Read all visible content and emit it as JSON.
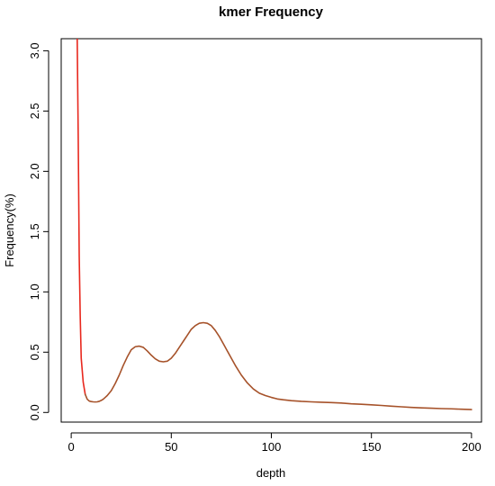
{
  "chart_data": {
    "type": "line",
    "title": "kmer Frequency",
    "xlabel": "depth",
    "ylabel": "Frequency(%)",
    "xlim": [
      -5,
      205
    ],
    "ylim": [
      -0.08,
      3.1
    ],
    "x_ticks": [
      0,
      50,
      100,
      150,
      200
    ],
    "x_tick_labels": [
      "0",
      "50",
      "100",
      "150",
      "200"
    ],
    "y_ticks": [
      0.0,
      0.5,
      1.0,
      1.5,
      2.0,
      2.5,
      3.0
    ],
    "y_tick_labels": [
      "0.0",
      "0.5",
      "1.0",
      "1.5",
      "2.0",
      "2.5",
      "3.0"
    ],
    "grid": false,
    "legend": "none",
    "series": [
      {
        "color": "#e8281e",
        "x": [
          3,
          3.5,
          4,
          4.5,
          5,
          6,
          7
        ],
        "y": [
          3.1,
          2.3,
          1.3,
          0.8,
          0.45,
          0.25,
          0.15
        ]
      },
      {
        "color": "#a6522a",
        "x": [
          7,
          8,
          9,
          10,
          11,
          12,
          13,
          14,
          15,
          16,
          17,
          18,
          20,
          22,
          24,
          26,
          28,
          30,
          32,
          34,
          36,
          38,
          40,
          42,
          44,
          46,
          48,
          50,
          52,
          54,
          56,
          58,
          60,
          62,
          64,
          66,
          68,
          70,
          72,
          74,
          76,
          78,
          80,
          82,
          85,
          88,
          91,
          94,
          97,
          100,
          103,
          106,
          110,
          115,
          120,
          125,
          130,
          135,
          140,
          145,
          150,
          155,
          160,
          165,
          170,
          175,
          180,
          185,
          190,
          195,
          200
        ],
        "y": [
          0.15,
          0.11,
          0.095,
          0.09,
          0.088,
          0.087,
          0.088,
          0.092,
          0.1,
          0.11,
          0.125,
          0.14,
          0.18,
          0.24,
          0.31,
          0.39,
          0.46,
          0.52,
          0.545,
          0.55,
          0.54,
          0.51,
          0.475,
          0.445,
          0.425,
          0.42,
          0.425,
          0.45,
          0.49,
          0.54,
          0.59,
          0.64,
          0.69,
          0.72,
          0.74,
          0.745,
          0.74,
          0.72,
          0.68,
          0.63,
          0.57,
          0.51,
          0.45,
          0.39,
          0.31,
          0.245,
          0.195,
          0.16,
          0.14,
          0.125,
          0.112,
          0.105,
          0.098,
          0.092,
          0.088,
          0.085,
          0.082,
          0.078,
          0.072,
          0.068,
          0.063,
          0.058,
          0.052,
          0.047,
          0.042,
          0.038,
          0.035,
          0.032,
          0.03,
          0.027,
          0.024
        ]
      }
    ]
  }
}
